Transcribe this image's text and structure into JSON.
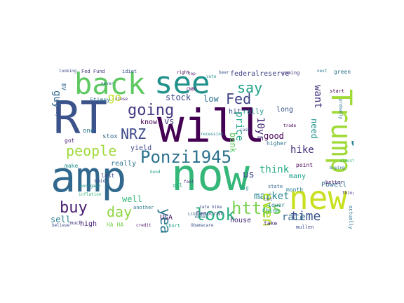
{
  "words": [
    {
      "text": "RT",
      "color": "#3b528b"
    },
    {
      "text": "will",
      "color": "#440154"
    },
    {
      "text": "amp",
      "color": "#31688e"
    },
    {
      "text": "now",
      "color": "#35b779"
    },
    {
      "text": "back",
      "color": "#5ec962"
    },
    {
      "text": "see",
      "color": "#21918c"
    },
    {
      "text": "Trump",
      "color": "#a0da39"
    },
    {
      "text": "today",
      "color": "#26828e"
    },
    {
      "text": "new",
      "color": "#c8e020"
    },
    {
      "text": "going",
      "color": "#443983"
    },
    {
      "text": "Ponzi1945",
      "color": "#2c728e"
    },
    {
      "text": "look",
      "color": "#29af7f"
    },
    {
      "text": "https",
      "color": "#7ad151"
    },
    {
      "text": "people",
      "color": "#9fda3a"
    },
    {
      "text": "buy",
      "color": "#481f70"
    },
    {
      "text": "year",
      "color": "#2a788e"
    },
    {
      "text": "day",
      "color": "#8fd744"
    },
    {
      "text": "Fed",
      "color": "#414487"
    },
    {
      "text": "say",
      "color": "#1fa187"
    },
    {
      "text": "still",
      "color": "#bddf26"
    },
    {
      "text": "NRZ",
      "color": "#3e4989"
    },
    {
      "text": "time",
      "color": "#3b528b"
    },
    {
      "text": "market",
      "color": "#25848e"
    },
    {
      "text": "rate",
      "color": "#31688e"
    },
    {
      "text": "hike",
      "color": "#46307e"
    },
    {
      "text": "think",
      "color": "#22a884"
    },
    {
      "text": "go",
      "color": "#bddf26"
    },
    {
      "text": "guy",
      "color": "#31688e"
    },
    {
      "text": "10yr",
      "color": "#482878"
    },
    {
      "text": "bank",
      "color": "#5ec962"
    },
    {
      "text": "price",
      "color": "#20a486"
    },
    {
      "text": "stock",
      "color": "#3f4788"
    },
    {
      "text": "low",
      "color": "#2c728e"
    },
    {
      "text": "want",
      "color": "#46337e"
    },
    {
      "text": "getting",
      "color": "#5ec962"
    },
    {
      "text": "need",
      "color": "#21918c"
    },
    {
      "text": "sell",
      "color": "#287d8e"
    },
    {
      "text": "us",
      "color": "#3e4a89"
    },
    {
      "text": "even",
      "color": "#b5de2b"
    },
    {
      "text": "vs",
      "color": "#443983"
    },
    {
      "text": "Powell",
      "color": "#31688e"
    },
    {
      "text": "good",
      "color": "#440154"
    },
    {
      "text": "yield",
      "color": "#3e4989"
    },
    {
      "text": "really",
      "color": "#2c728e"
    },
    {
      "text": "well",
      "color": "#35b779"
    },
    {
      "text": "many",
      "color": "#1f9e89"
    },
    {
      "text": "house",
      "color": "#472d7b"
    },
    {
      "text": "high",
      "color": "#482475"
    },
    {
      "text": "long",
      "color": "#3b528b"
    },
    {
      "text": "know",
      "color": "#440154"
    },
    {
      "text": "hit",
      "color": "#3b528b"
    },
    {
      "text": "rally",
      "color": "#21918c"
    },
    {
      "text": "federalreserve",
      "color": "#414487"
    },
    {
      "text": "USA",
      "color": "#471365"
    },
    {
      "text": "BV",
      "color": "#31688e"
    },
    {
      "text": "Stimpy",
      "color": "#2c728e"
    },
    {
      "text": "Fed Fund",
      "color": "#443983"
    },
    {
      "text": "idiot",
      "color": "#3b528b"
    },
    {
      "text": "green",
      "color": "#2c728e"
    },
    {
      "text": "coming",
      "color": "#472d7b"
    },
    {
      "text": "month",
      "color": "#287d8e"
    },
    {
      "text": "China",
      "color": "#1f9e89"
    },
    {
      "text": "take",
      "color": "#482878"
    },
    {
      "text": "short",
      "color": "#1fa187"
    },
    {
      "text": "Democrat",
      "color": "#3e4989"
    },
    {
      "text": "lower",
      "color": "#25848e"
    },
    {
      "text": "cut",
      "color": "#3b528b"
    },
    {
      "text": "higher",
      "color": "#2c728e"
    },
    {
      "text": "point",
      "color": "#440154"
    },
    {
      "text": "stox",
      "color": "#31688e"
    },
    {
      "text": "one",
      "color": "#2a788e"
    },
    {
      "text": "got",
      "color": "#482475"
    },
    {
      "text": "make",
      "color": "#21918c"
    },
    {
      "text": "last",
      "color": "#3e4989"
    },
    {
      "text": "HA HA",
      "color": "#7ad151"
    },
    {
      "text": "CNBC",
      "color": "#440154"
    },
    {
      "text": "oil",
      "color": "#22a884"
    },
    {
      "text": "actually",
      "color": "#2c728e"
    },
    {
      "text": "state",
      "color": "#31688e"
    },
    {
      "text": "much",
      "color": "#46337e"
    },
    {
      "text": "said",
      "color": "#3b528b"
    },
    {
      "text": "another",
      "color": "#2a788e"
    },
    {
      "text": "looking",
      "color": "#3e4989"
    },
    {
      "text": "start",
      "color": "#440154"
    },
    {
      "text": "mortgage",
      "color": "#21918c"
    },
    {
      "text": "probably",
      "color": "#2c728e"
    },
    {
      "text": "already",
      "color": "#3b528b"
    },
    {
      "text": "better",
      "color": "#481f70"
    },
    {
      "text": "inflation",
      "color": "#35b779"
    },
    {
      "text": "mullen",
      "color": "#3e4989"
    },
    {
      "text": "recession",
      "color": "#25848e"
    },
    {
      "text": "Obamacare",
      "color": "#3b528b"
    },
    {
      "text": "credit",
      "color": "#471365"
    },
    {
      "text": "buying",
      "color": "#2c728e"
    },
    {
      "text": "bond",
      "color": "#1f9e89"
    },
    {
      "text": "right",
      "color": "#440154"
    },
    {
      "text": "close",
      "color": "#482878"
    },
    {
      "text": "Libtard",
      "color": "#31688e"
    },
    {
      "text": "rate hike",
      "color": "#414487"
    },
    {
      "text": "big",
      "color": "#21918c"
    },
    {
      "text": "cash",
      "color": "#3b528b"
    },
    {
      "text": "next",
      "color": "#2a788e"
    },
    {
      "text": "thing",
      "color": "#472d7b"
    },
    {
      "text": "believe",
      "color": "#3e4989"
    },
    {
      "text": "trade",
      "color": "#440154"
    },
    {
      "text": "money",
      "color": "#2c728e"
    },
    {
      "text": "bear",
      "color": "#3b528b"
    },
    {
      "text": "vote",
      "color": "#21918c"
    },
    {
      "text": "feel",
      "color": "#46337e"
    },
    {
      "text": "never",
      "color": "#31688e"
    },
    {
      "text": "almost",
      "color": "#35b779"
    },
    {
      "text": "top",
      "color": "#482475"
    }
  ]
}
